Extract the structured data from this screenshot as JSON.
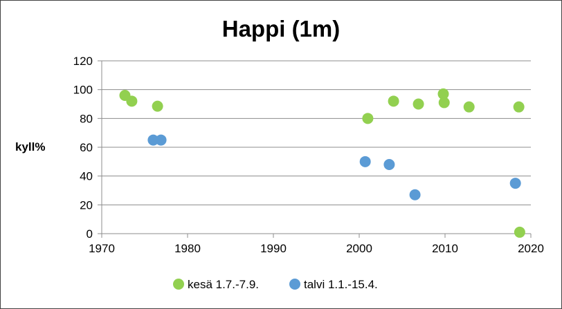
{
  "chart_data": {
    "type": "scatter",
    "title": "Happi (1m)",
    "xlabel": "",
    "ylabel": "kyll%",
    "xlim": [
      1970,
      2020
    ],
    "ylim": [
      0,
      120
    ],
    "xticks": [
      1970,
      1980,
      1990,
      2000,
      2010,
      2020
    ],
    "yticks": [
      0,
      20,
      40,
      60,
      80,
      100,
      120
    ],
    "grid": "horizontal",
    "legend": "bottom",
    "series": [
      {
        "name": "kesä 1.7.-7.9.",
        "color": "#92d050",
        "points": [
          {
            "x": 1972.7,
            "y": 96
          },
          {
            "x": 1973.5,
            "y": 92
          },
          {
            "x": 1976.5,
            "y": 88.5
          },
          {
            "x": 2001.0,
            "y": 80
          },
          {
            "x": 2004.0,
            "y": 92
          },
          {
            "x": 2006.9,
            "y": 90
          },
          {
            "x": 2009.8,
            "y": 97
          },
          {
            "x": 2009.9,
            "y": 91
          },
          {
            "x": 2012.8,
            "y": 88
          },
          {
            "x": 2018.6,
            "y": 88
          },
          {
            "x": 2018.7,
            "y": 1
          }
        ]
      },
      {
        "name": "talvi 1.1.-15.4.",
        "color": "#5b9bd5",
        "points": [
          {
            "x": 1976.0,
            "y": 65
          },
          {
            "x": 1976.9,
            "y": 65
          },
          {
            "x": 2000.7,
            "y": 50
          },
          {
            "x": 2003.5,
            "y": 48
          },
          {
            "x": 2006.5,
            "y": 27
          },
          {
            "x": 2018.2,
            "y": 35
          }
        ]
      }
    ]
  }
}
